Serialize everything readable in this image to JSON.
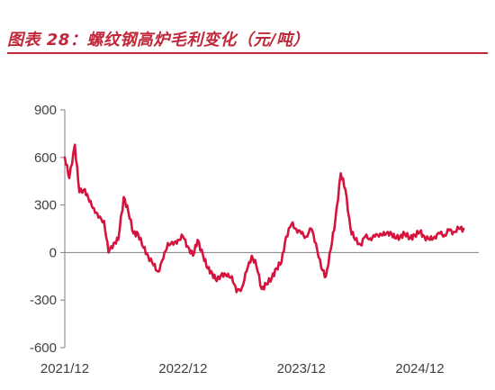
{
  "title": "图表 28：螺纹钢高炉毛利变化（元/吨）",
  "colors": {
    "accent": "#c0283a",
    "line": "#d6133d",
    "axis": "#7f7f7f",
    "text": "#404040"
  },
  "chart_data": {
    "type": "line",
    "title": "",
    "xlabel": "",
    "ylabel": "",
    "ylim": [
      -600,
      900
    ],
    "yticks": [
      -600,
      -300,
      0,
      300,
      600,
      900
    ],
    "xlim": [
      "2021-12",
      "2025-06"
    ],
    "xticks": [
      "2021/12",
      "2022/12",
      "2023/12",
      "2024/12"
    ],
    "grid": false,
    "legend": "none",
    "series": [
      {
        "x": [
          "2021-12-01",
          "2021-12-15",
          "2022-01-01",
          "2022-01-15",
          "2022-02-01",
          "2022-02-15",
          "2022-03-01",
          "2022-03-15",
          "2022-04-01",
          "2022-04-15",
          "2022-05-01",
          "2022-05-15",
          "2022-06-01",
          "2022-06-15",
          "2022-07-01",
          "2022-07-15",
          "2022-08-01",
          "2022-08-15",
          "2022-09-01",
          "2022-09-15",
          "2022-10-01",
          "2022-10-15",
          "2022-11-01",
          "2022-11-15",
          "2022-12-01",
          "2022-12-15",
          "2023-01-01",
          "2023-01-15",
          "2023-02-01",
          "2023-02-15",
          "2023-03-01",
          "2023-03-15",
          "2023-04-01",
          "2023-04-15",
          "2023-05-01",
          "2023-05-15",
          "2023-06-01",
          "2023-06-15",
          "2023-07-01",
          "2023-07-15",
          "2023-08-01",
          "2023-08-15",
          "2023-09-01",
          "2023-09-15",
          "2023-10-01",
          "2023-10-15",
          "2023-11-01",
          "2023-11-15",
          "2023-12-01",
          "2023-12-15",
          "2024-01-01",
          "2024-01-15",
          "2024-02-01",
          "2024-02-15",
          "2024-03-01",
          "2024-03-15",
          "2024-04-01",
          "2024-04-15",
          "2024-05-01",
          "2024-05-15",
          "2024-06-01",
          "2024-06-15",
          "2024-07-01",
          "2024-07-15",
          "2024-08-01",
          "2024-08-15",
          "2024-09-01",
          "2024-09-15",
          "2024-10-01",
          "2024-10-15",
          "2024-11-01",
          "2024-11-15",
          "2024-12-01",
          "2024-12-15",
          "2025-01-01",
          "2025-01-15",
          "2025-02-01",
          "2025-02-15",
          "2025-03-01",
          "2025-03-15",
          "2025-04-01",
          "2025-04-15"
        ],
        "values": [
          600,
          470,
          680,
          380,
          400,
          320,
          280,
          220,
          200,
          0,
          60,
          80,
          350,
          260,
          120,
          120,
          30,
          -20,
          -80,
          -120,
          -40,
          60,
          50,
          80,
          100,
          40,
          -20,
          80,
          -20,
          -100,
          -130,
          -180,
          -130,
          -150,
          -150,
          -250,
          -220,
          -120,
          -20,
          -80,
          -230,
          -200,
          -160,
          -100,
          -60,
          100,
          180,
          150,
          120,
          100,
          150,
          60,
          -100,
          -150,
          20,
          200,
          500,
          400,
          150,
          80,
          50,
          100,
          90,
          100,
          120,
          110,
          130,
          90,
          100,
          120,
          90,
          110,
          130,
          100,
          80,
          100,
          120,
          110,
          140,
          130,
          150,
          150
        ]
      }
    ]
  }
}
